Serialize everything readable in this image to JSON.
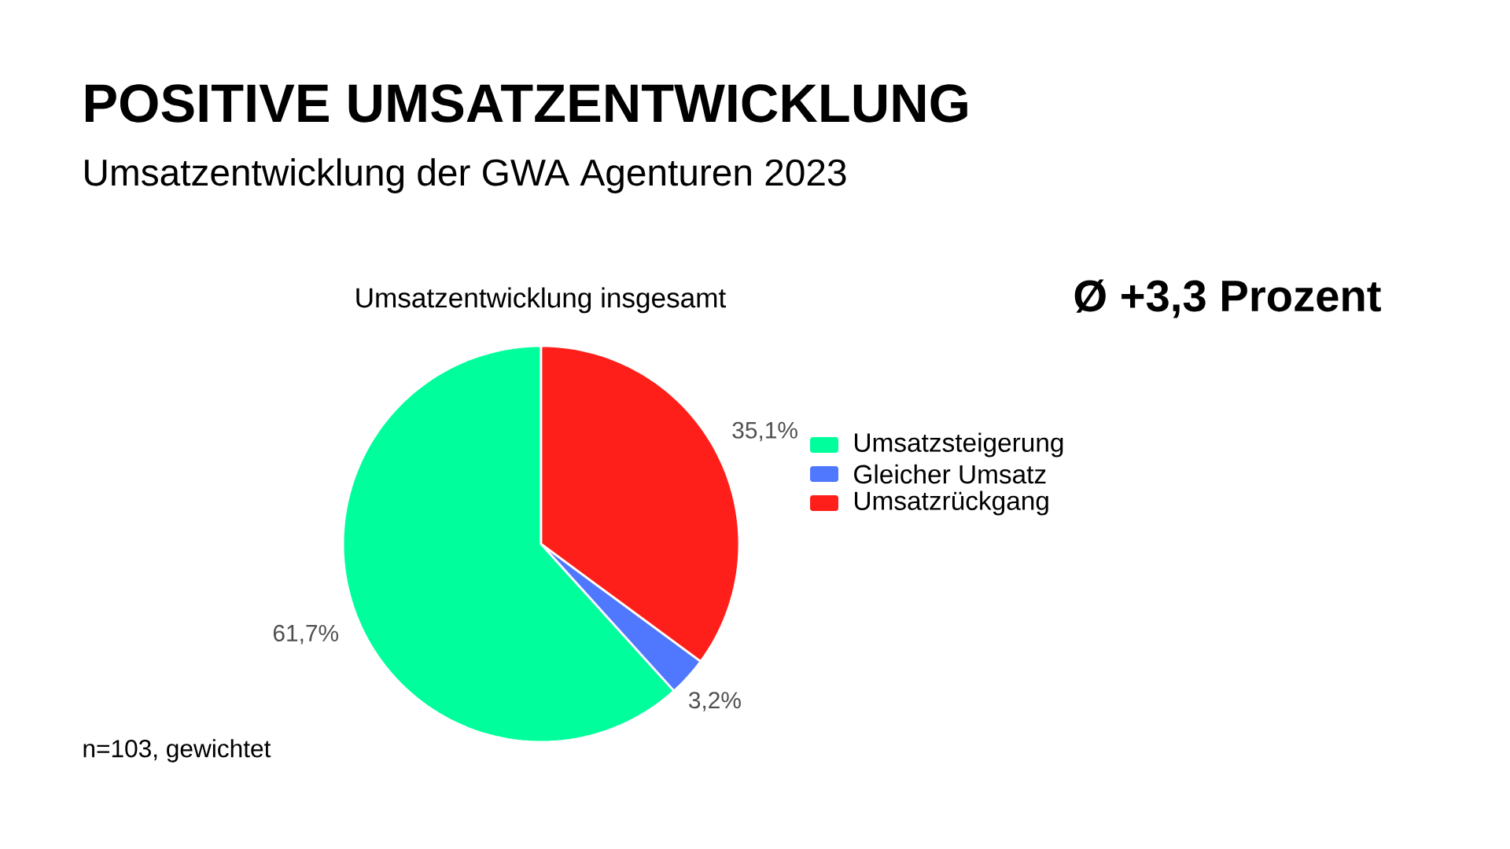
{
  "chart_data": {
    "type": "pie",
    "title": "Umsatzentwicklung insgesamt",
    "annotations": [
      "POSITIVE UMSATZENTWICKLUNG",
      "Umsatzentwicklung der GWA Agenturen 2023",
      "Ø +3,3 Prozent",
      "n=103, gewichtet"
    ],
    "categories": [
      "Umsatzsteigerung",
      "Gleicher Umsatz",
      "Umsatzrückgang"
    ],
    "values": [
      61.7,
      3.2,
      35.1
    ],
    "value_labels": [
      "61,7%",
      "3,2%",
      "35,1%"
    ],
    "colors": [
      "#00ff9c",
      "#5078ff",
      "#ff1f1a"
    ],
    "legend": "right"
  }
}
